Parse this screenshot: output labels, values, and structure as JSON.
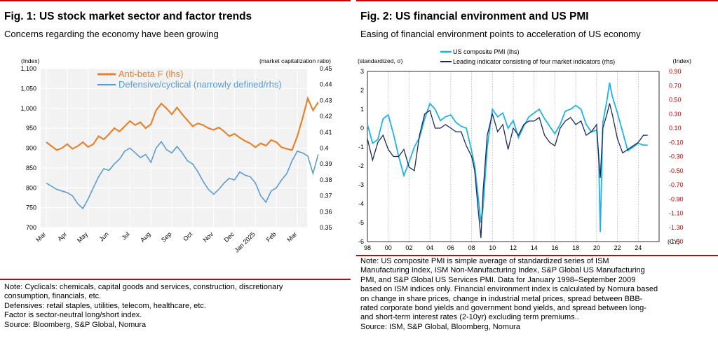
{
  "figures": [
    {
      "title": "Fig. 1: US stock market sector and factor trends",
      "subtitle": "Concerns regarding the economy have been growing",
      "notes": [
        "Note: Cyclicals: chemicals, capital goods and services, construction, discretionary",
        "consumption, financials, etc.",
        "Defensives: retail staples, utilities, telecom, healthcare, etc.",
        "Factor is sector-neutral long/short index.",
        "Source: Bloomberg, S&P Global, Nomura"
      ]
    },
    {
      "title": "Fig. 2: US financial environment and US PMI",
      "subtitle": "Easing of financial environment points to acceleration of US economy",
      "notes": [
        "Note: US composite PMI is simple average of standardized series of ISM",
        "Manufacturing Index, ISM Non-Manufacturing Index, S&P Global US Manufacturing",
        "PMI, and S&P Global US Services PMI. Data for January 1998–September 2009",
        "based on ISM indices only. Financial environment index is calculated by Nomura based",
        "on change in share prices, change in industrial metal prices, spread between BBB-",
        "rated corporate bond yields and government bond yields, and spread between long-",
        "and short-term interest rates (2-10yr) excluding term premiums..",
        "Source: ISM, S&P Global, Bloomberg, Nomura"
      ]
    }
  ],
  "chart_data": [
    {
      "type": "line",
      "left_axis_label": "(Index)",
      "right_axis_label": "(market capitalization ratio)",
      "left_ylim": [
        700,
        1100
      ],
      "right_ylim": [
        0.35,
        0.45
      ],
      "left_ticks": [
        "1,100",
        "1,050",
        "1,000",
        "950",
        "900",
        "850",
        "800",
        "750",
        "700"
      ],
      "right_ticks": [
        "0.45",
        "0.44",
        "0.43",
        "0.42",
        "0.41",
        "0.4",
        "0.39",
        "0.38",
        "0.37",
        "0.36",
        "0.35"
      ],
      "x_ticks": [
        "Mar",
        "Apr",
        "May",
        "Jun",
        "Jul",
        "Aug",
        "Sep",
        "Oct",
        "Nov",
        "Dec",
        "Jan 2025",
        "Feb",
        "Mar"
      ],
      "grid": true,
      "legend_position": "top-left",
      "colors": {
        "anti_beta": "#e8822e",
        "defensive": "#5b9bd5"
      },
      "series": [
        {
          "name": "Anti-beta F (lhs)",
          "axis": "left",
          "x_month": [
            0,
            0.25,
            0.5,
            0.75,
            1,
            1.25,
            1.5,
            1.75,
            2,
            2.25,
            2.5,
            2.75,
            3,
            3.25,
            3.5,
            3.75,
            4,
            4.25,
            4.5,
            4.75,
            5,
            5.25,
            5.5,
            5.75,
            6,
            6.25,
            6.5,
            6.75,
            7,
            7.25,
            7.5,
            7.75,
            8,
            8.25,
            8.5,
            8.75,
            9,
            9.25,
            9.5,
            9.75,
            10,
            10.25,
            10.5,
            10.75,
            11,
            11.25,
            11.5,
            11.75,
            12,
            12.25,
            12.5,
            12.75,
            13
          ],
          "values": [
            915,
            905,
            895,
            900,
            910,
            898,
            905,
            915,
            903,
            910,
            930,
            922,
            935,
            950,
            942,
            955,
            968,
            958,
            965,
            950,
            960,
            995,
            1012,
            1000,
            985,
            1002,
            985,
            970,
            955,
            962,
            958,
            950,
            946,
            952,
            942,
            930,
            936,
            926,
            918,
            912,
            902,
            912,
            906,
            920,
            915,
            902,
            898,
            895,
            930,
            975,
            1025,
            995,
            1015
          ]
        },
        {
          "name": "Defensive/cyclical (narrowly defined/rhs)",
          "axis": "right",
          "x_month": [
            0,
            0.25,
            0.5,
            0.75,
            1,
            1.25,
            1.5,
            1.75,
            2,
            2.25,
            2.5,
            2.75,
            3,
            3.25,
            3.5,
            3.75,
            4,
            4.25,
            4.5,
            4.75,
            5,
            5.25,
            5.5,
            5.75,
            6,
            6.25,
            6.5,
            6.75,
            7,
            7.25,
            7.5,
            7.75,
            8,
            8.25,
            8.5,
            8.75,
            9,
            9.25,
            9.5,
            9.75,
            10,
            10.25,
            10.5,
            10.75,
            11,
            11.25,
            11.5,
            11.75,
            12,
            12.25,
            12.5,
            12.75,
            13
          ],
          "values": [
            0.378,
            0.376,
            0.374,
            0.373,
            0.372,
            0.37,
            0.365,
            0.362,
            0.368,
            0.375,
            0.382,
            0.387,
            0.386,
            0.39,
            0.393,
            0.398,
            0.4,
            0.397,
            0.394,
            0.396,
            0.391,
            0.4,
            0.404,
            0.399,
            0.397,
            0.401,
            0.397,
            0.392,
            0.39,
            0.385,
            0.379,
            0.374,
            0.371,
            0.374,
            0.378,
            0.381,
            0.38,
            0.385,
            0.383,
            0.382,
            0.378,
            0.37,
            0.366,
            0.373,
            0.375,
            0.38,
            0.384,
            0.392,
            0.398,
            0.397,
            0.395,
            0.384,
            0.396
          ]
        }
      ]
    },
    {
      "type": "line",
      "left_axis_label": "(standardized, σ)",
      "right_axis_label": "(Index)",
      "x_axis_label": "(CY)",
      "left_ylim": [
        -6,
        3
      ],
      "right_ylim": [
        -1.5,
        0.9
      ],
      "left_ticks": [
        "3",
        "2",
        "1",
        "0",
        "-1",
        "-2",
        "-3",
        "-4",
        "-5",
        "-6"
      ],
      "right_ticks": [
        "0.90",
        "0.70",
        "0.50",
        "0.30",
        "0.10",
        "-0.10",
        "-0.30",
        "-0.50",
        "-0.70",
        "-0.90",
        "-1.10",
        "-1.30",
        "-1.50"
      ],
      "x_ticks": [
        "98",
        "00",
        "02",
        "04",
        "06",
        "08",
        "10",
        "12",
        "14",
        "16",
        "18",
        "20",
        "22",
        "24"
      ],
      "grid": true,
      "legend_position": "top-left",
      "colors": {
        "pmi": "#1fb2e6",
        "leading": "#1a2a5e",
        "right_axis": "#d00000"
      },
      "series": [
        {
          "name": "US composite PMI (lhs)",
          "axis": "left",
          "x": [
            1998,
            1998.5,
            1999,
            1999.5,
            2000,
            2000.5,
            2001,
            2001.5,
            2002,
            2002.5,
            2003,
            2003.5,
            2004,
            2004.5,
            2005,
            2005.5,
            2006,
            2006.5,
            2007,
            2007.5,
            2008,
            2008.3,
            2008.6,
            2008.9,
            2009.1,
            2009.5,
            2010,
            2010.5,
            2011,
            2011.5,
            2012,
            2012.5,
            2013,
            2013.5,
            2014,
            2014.5,
            2015,
            2015.5,
            2016,
            2016.5,
            2017,
            2017.5,
            2018,
            2018.5,
            2019,
            2019.5,
            2020,
            2020.2,
            2020.35,
            2020.6,
            2021,
            2021.25,
            2021.5,
            2022,
            2022.5,
            2023,
            2023.5,
            2024,
            2024.5,
            2024.9
          ],
          "values": [
            0.2,
            -0.8,
            -0.6,
            0.5,
            0.7,
            -0.3,
            -1.5,
            -2.5,
            -1.8,
            -1.0,
            -0.5,
            0.5,
            1.3,
            1.0,
            0.4,
            0.6,
            0.7,
            0.3,
            0.1,
            0.0,
            -1.2,
            -2.0,
            -3.5,
            -5.0,
            -4.2,
            -1.0,
            1.0,
            0.6,
            0.8,
            0.0,
            0.4,
            -0.5,
            0.1,
            0.6,
            0.8,
            1.0,
            0.5,
            0.1,
            -0.3,
            0.2,
            0.9,
            1.0,
            1.2,
            1.0,
            0.2,
            -0.2,
            -0.1,
            -1.5,
            -5.5,
            0.3,
            1.5,
            2.4,
            1.7,
            0.8,
            -0.2,
            -1.2,
            -1.0,
            -0.8,
            -0.9,
            -0.9
          ]
        },
        {
          "name": "Leading indicator consisting of four market indicators (rhs)",
          "axis": "right",
          "x": [
            1998,
            1998.5,
            1999,
            1999.5,
            2000,
            2000.5,
            2001,
            2001.5,
            2002,
            2002.5,
            2003,
            2003.5,
            2004,
            2004.5,
            2005,
            2005.5,
            2006,
            2006.5,
            2007,
            2007.5,
            2008,
            2008.3,
            2008.6,
            2008.9,
            2009.1,
            2009.5,
            2010,
            2010.5,
            2011,
            2011.5,
            2012,
            2012.5,
            2013,
            2013.5,
            2014,
            2014.5,
            2015,
            2015.5,
            2016,
            2016.5,
            2017,
            2017.5,
            2018,
            2018.5,
            2019,
            2019.5,
            2020,
            2020.2,
            2020.35,
            2020.6,
            2021,
            2021.25,
            2021.5,
            2022,
            2022.5,
            2023,
            2023.5,
            2024,
            2024.5,
            2024.9
          ],
          "values": [
            -0.05,
            -0.35,
            -0.1,
            0.0,
            -0.2,
            -0.3,
            -0.3,
            -0.2,
            -0.45,
            -0.5,
            0.0,
            0.3,
            0.35,
            0.1,
            0.1,
            0.15,
            0.1,
            0.05,
            0.05,
            -0.15,
            -0.3,
            -0.5,
            -1.0,
            -1.45,
            -0.8,
            0.0,
            0.3,
            0.05,
            0.15,
            -0.2,
            0.1,
            0.0,
            0.15,
            0.2,
            0.2,
            0.25,
            0.0,
            -0.1,
            -0.15,
            0.1,
            0.2,
            0.25,
            0.15,
            0.2,
            0.0,
            0.05,
            0.15,
            -0.3,
            -0.6,
            0.1,
            0.3,
            0.45,
            0.3,
            -0.05,
            -0.25,
            -0.2,
            -0.15,
            -0.1,
            0.0,
            0.0
          ]
        }
      ]
    }
  ]
}
